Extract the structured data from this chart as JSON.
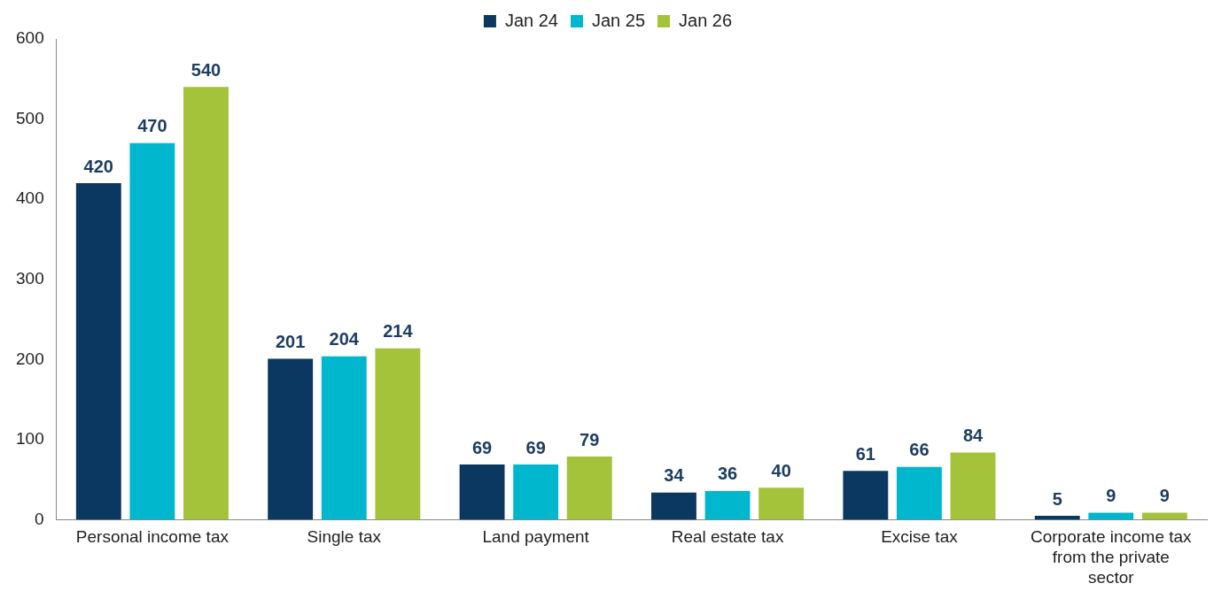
{
  "chart_data": {
    "type": "bar",
    "categories": [
      "Personal income tax",
      "Single tax",
      "Land payment",
      "Real estate tax",
      "Excise tax",
      "Corporate income tax from the private sector"
    ],
    "series": [
      {
        "name": "Jan 24",
        "color": "#0b3861",
        "values": [
          420,
          201,
          69,
          34,
          61,
          5
        ]
      },
      {
        "name": "Jan 25",
        "color": "#00b7cd",
        "values": [
          470,
          204,
          69,
          36,
          66,
          9
        ]
      },
      {
        "name": "Jan 26",
        "color": "#a5c23b",
        "values": [
          540,
          214,
          79,
          40,
          84,
          9
        ]
      }
    ],
    "ylim": [
      0,
      600
    ],
    "yticks": [
      0,
      100,
      200,
      300,
      400,
      500,
      600
    ],
    "grid": false,
    "legend": "top",
    "data_labels": true
  }
}
